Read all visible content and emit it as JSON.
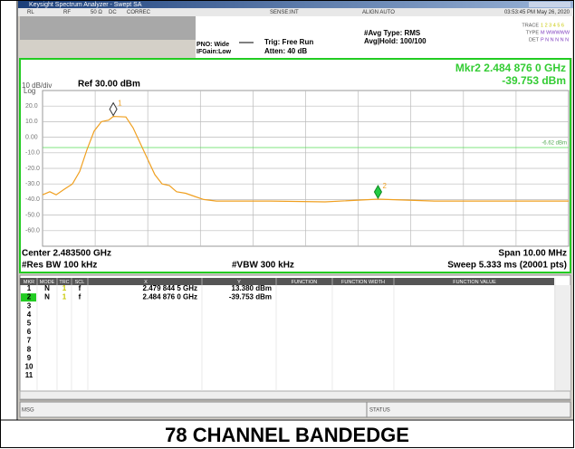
{
  "window": {
    "title": "Keysight Spectrum Analyzer - Swept SA"
  },
  "status_bar": {
    "items": [
      "RL",
      "RF",
      "50 Ω",
      "DC",
      "CORREC",
      "SENSE:INT",
      "ALIGN AUTO"
    ],
    "datetime": "03:53:45 PM May 26, 2020"
  },
  "settings": {
    "pno": "PNO: Wide",
    "ifgain": "IFGain:Low",
    "trig": "Trig: Free Run",
    "atten": "Atten: 40 dB",
    "avg_type": "#Avg Type: RMS",
    "avg_hold": "Avg|Hold: 100/100",
    "trace_box": [
      [
        "TRACE",
        "1 2 3 4 5 6"
      ],
      [
        "TYPE",
        "M WWWWW"
      ],
      [
        "DET",
        "P N N N N N"
      ]
    ]
  },
  "spectrum": {
    "marker_readout": "Mkr2 2.484 876 0 GHz",
    "marker_value": "-39.753 dBm",
    "scale": "10 dB/div",
    "scale_type": "Log",
    "ref": "Ref 30.00 dBm",
    "xlim": [
      2.4785,
      2.4885
    ],
    "ylim": [
      -70,
      30
    ],
    "yticks": [
      {
        "value": 20,
        "label": "20.0"
      },
      {
        "value": 10,
        "label": "10.0"
      },
      {
        "value": 0,
        "label": "0.00"
      },
      {
        "value": -10,
        "label": "-10.0"
      },
      {
        "value": -20,
        "label": "-20.0"
      },
      {
        "value": -30,
        "label": "-30.0"
      },
      {
        "value": -40,
        "label": "-40.0"
      },
      {
        "value": -50,
        "label": "-50.0"
      },
      {
        "value": -60,
        "label": "-60.0"
      }
    ],
    "display_line": {
      "value": -6.62,
      "label": "-6.62 dBm"
    },
    "trace": {
      "color": "#f0a020",
      "x": [
        2.4785,
        2.478638,
        2.478758,
        2.47893,
        2.479068,
        2.479206,
        2.479343,
        2.479481,
        2.479619,
        2.479756,
        2.4798445,
        2.480083,
        2.480221,
        2.480359,
        2.480497,
        2.480634,
        2.480772,
        2.48091,
        2.481048,
        2.48122,
        2.481392,
        2.481564,
        2.481805,
        2.482838,
        2.48387,
        2.484876,
        2.485952,
        2.487329,
        2.4885
      ],
      "values": [
        -37,
        -35,
        -37,
        -33,
        -30,
        -22,
        -8,
        4,
        10,
        11,
        13.38,
        13,
        6,
        -4,
        -14,
        -24,
        -30,
        -31,
        -35,
        -36,
        -38,
        -40,
        -41,
        -41,
        -41.5,
        -39.753,
        -41,
        -41,
        -41
      ]
    },
    "markers": [
      {
        "label": "1",
        "x": 2.4798445,
        "y": 13.38
      },
      {
        "label": "2",
        "x": 2.484876,
        "y": -39.753
      }
    ],
    "center": "Center 2.483500 GHz",
    "span": "Span 10.00 MHz",
    "rbw": "#Res BW 100 kHz",
    "vbw": "#VBW 300 kHz",
    "sweep": "Sweep  5.333 ms (20001 pts)"
  },
  "table": {
    "headers": [
      "MKR",
      "MODE",
      "TRC",
      "SCL",
      "X",
      "Y",
      "FUNCTION",
      "FUNCTION WIDTH",
      "FUNCTION VALUE"
    ],
    "rows": [
      [
        "1",
        "N",
        "1",
        "f",
        "2.479 844 5 GHz",
        "13.380 dBm"
      ],
      [
        "2",
        "N",
        "1",
        "f",
        "2.484 876 0 GHz",
        "-39.753 dBm"
      ],
      [
        "3"
      ],
      [
        "4"
      ],
      [
        "5"
      ],
      [
        "6"
      ],
      [
        "7"
      ],
      [
        "8"
      ],
      [
        "9"
      ],
      [
        "10"
      ],
      [
        "11"
      ]
    ]
  },
  "bottom_bar": {
    "msg": "MSG",
    "status": "STATUS"
  },
  "caption": "78 CHANNEL BANDEDGE"
}
